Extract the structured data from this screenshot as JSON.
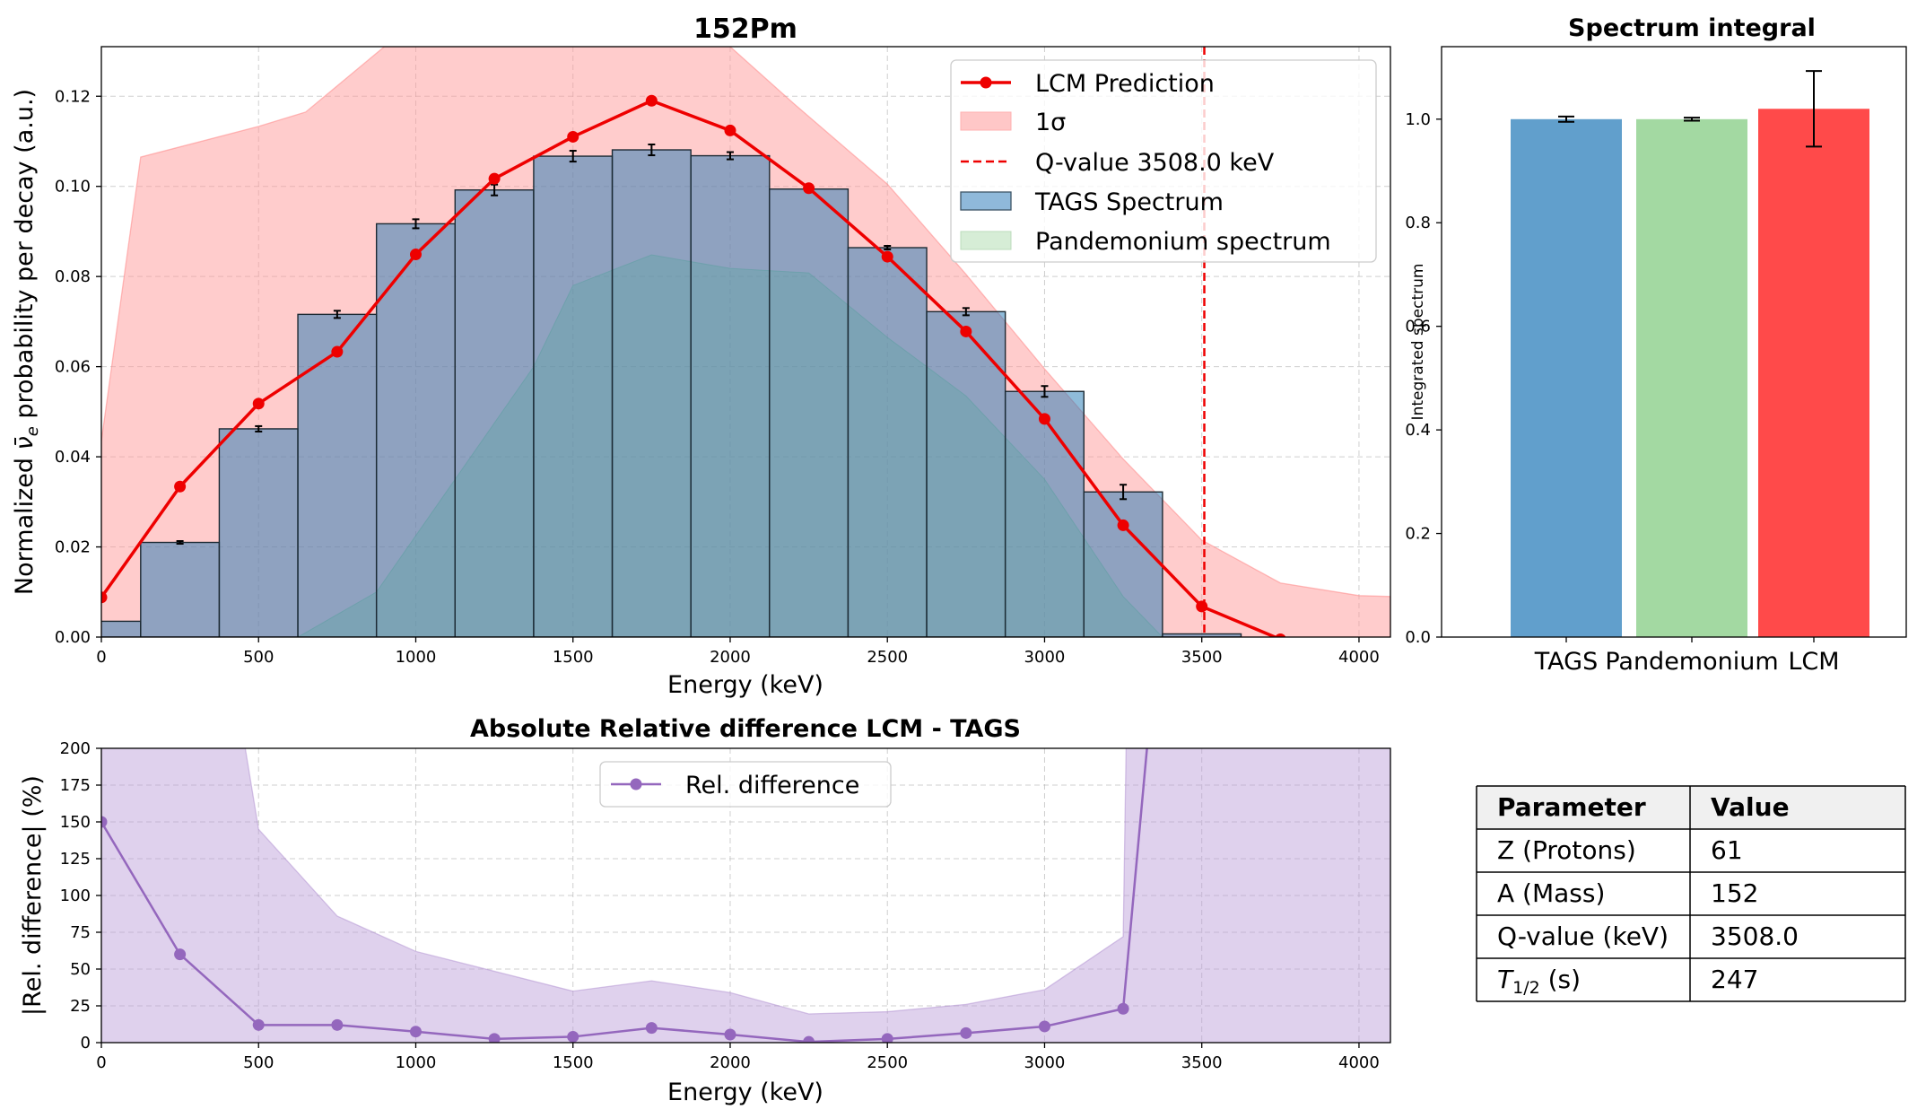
{
  "chart_data": [
    {
      "id": "main",
      "type": "bar+line",
      "title": "152Pm",
      "xlabel": "Energy (keV)",
      "ylabel_main": "Normalized ",
      "ylabel_sym": "ν̄",
      "ylabel_sub": "e",
      "ylabel_tail": " probability per decay (a.u.)",
      "xlim": [
        0,
        4100
      ],
      "ylim": [
        0,
        0.131
      ],
      "xticks": [
        0,
        500,
        1000,
        1500,
        2000,
        2500,
        3000,
        3500,
        4000
      ],
      "xtick_labels": [
        "0",
        "500",
        "1000",
        "1500",
        "2000",
        "2500",
        "3000",
        "3500",
        "4000"
      ],
      "yticks": [
        0,
        0.02,
        0.04,
        0.06,
        0.08,
        0.1,
        0.12
      ],
      "ytick_labels": [
        "0.00",
        "0.02",
        "0.04",
        "0.06",
        "0.08",
        "0.10",
        "0.12"
      ],
      "bin_width": 250,
      "bin_centers": [
        0,
        250,
        500,
        750,
        1000,
        1250,
        1500,
        1750,
        2000,
        2250,
        2500,
        2750,
        3000,
        3250,
        3500
      ],
      "tags_values": [
        0.0035,
        0.021,
        0.0462,
        0.0716,
        0.0917,
        0.0992,
        0.1067,
        0.1081,
        0.1068,
        0.0994,
        0.0864,
        0.0722,
        0.0545,
        0.0322,
        0.0007
      ],
      "tags_errors": [
        0.0,
        0.0003,
        0.0006,
        0.0008,
        0.001,
        0.0012,
        0.0012,
        0.0012,
        0.0008,
        0.0006,
        0.0004,
        0.0008,
        0.0012,
        0.0016,
        0.0
      ],
      "pandemonium_x": [
        0,
        125,
        375,
        625,
        875,
        1125,
        1375,
        1500,
        1750,
        2000,
        2250,
        2500,
        2750,
        3000,
        3250,
        3375
      ],
      "pandemonium_values": [
        0,
        0,
        0,
        0,
        0.01,
        0.035,
        0.06,
        0.078,
        0.0848,
        0.0818,
        0.0808,
        0.0665,
        0.0535,
        0.035,
        0.009,
        0
      ],
      "lcm_x": [
        0,
        250,
        500,
        750,
        1000,
        1250,
        1500,
        1750,
        2000,
        2250,
        2500,
        2750,
        3000,
        3250,
        3500,
        3750
      ],
      "lcm_values": [
        0.0088,
        0.0334,
        0.0518,
        0.0633,
        0.0849,
        0.1017,
        0.111,
        0.119,
        0.1124,
        0.0996,
        0.0844,
        0.0678,
        0.0484,
        0.0248,
        0.0068,
        -0.0005
      ],
      "sigma_x": [
        0,
        125,
        500,
        650,
        900,
        1000,
        2000,
        2200,
        2500,
        2750,
        3000,
        3250,
        3500,
        3750,
        4000,
        4100
      ],
      "sigma_upper": [
        0.0435,
        0.1065,
        0.1133,
        0.1165,
        0.131,
        0.131,
        0.131,
        0.1185,
        0.1005,
        0.0805,
        0.0595,
        0.0395,
        0.0215,
        0.012,
        0.0092,
        0.009
      ],
      "sigma_lower": [
        0,
        0,
        0,
        0,
        0,
        0,
        0,
        0,
        0,
        0,
        0,
        0,
        0,
        0,
        0,
        0
      ],
      "qvalue": 3508.0,
      "legend": {
        "lcm": "LCM Prediction",
        "sigma": "1σ",
        "qvalue": "Q-value 3508.0 keV",
        "tags": "TAGS Spectrum",
        "pandemonium": "Pandemonium spectrum"
      },
      "legend_position": "top-right"
    },
    {
      "id": "integral",
      "type": "bar",
      "title": "Spectrum integral",
      "ylabel": "Integrated spectrum",
      "categories": [
        "TAGS",
        "Pandemonium",
        "LCM"
      ],
      "values": [
        1.0,
        1.0,
        1.02
      ],
      "errors": [
        0.005,
        0.003,
        0.073
      ],
      "colors": [
        "#619FCC",
        "#A3D9A2",
        "#FF4A4A"
      ],
      "ylim": [
        0,
        1.14
      ],
      "yticks": [
        0,
        0.2,
        0.4,
        0.6,
        0.8,
        1.0
      ],
      "ytick_labels": [
        "0.0",
        "0.2",
        "0.4",
        "0.6",
        "0.8",
        "1.0"
      ]
    },
    {
      "id": "reldiff",
      "type": "line",
      "title": "Absolute Relative difference LCM - TAGS",
      "xlabel": "Energy (keV)",
      "ylabel": "|Rel. difference| (%)",
      "xlim": [
        0,
        4100
      ],
      "ylim": [
        0,
        200
      ],
      "xticks": [
        0,
        500,
        1000,
        1500,
        2000,
        2500,
        3000,
        3500,
        4000
      ],
      "xtick_labels": [
        "0",
        "500",
        "1000",
        "1500",
        "2000",
        "2500",
        "3000",
        "3500",
        "4000"
      ],
      "yticks": [
        0,
        25,
        50,
        75,
        100,
        125,
        150,
        175,
        200
      ],
      "ytick_labels": [
        "0",
        "25",
        "50",
        "75",
        "100",
        "125",
        "150",
        "175",
        "200"
      ],
      "x": [
        0,
        250,
        500,
        750,
        1000,
        1250,
        1500,
        1750,
        2000,
        2250,
        2500,
        2750,
        3000,
        3250,
        3330
      ],
      "values": [
        150,
        60,
        12,
        12,
        7.5,
        2.5,
        4,
        10,
        5.5,
        0.5,
        2.5,
        6.5,
        11,
        23,
        210
      ],
      "band_x": [
        0,
        450,
        500,
        750,
        1000,
        1500,
        1750,
        2000,
        2250,
        2500,
        2750,
        3000,
        3250,
        3260,
        3330,
        4100
      ],
      "band_upper": [
        210,
        210,
        145,
        86,
        62,
        35,
        42,
        34,
        19.5,
        21,
        26,
        36,
        72,
        210,
        210,
        210
      ],
      "legend": "Rel. difference",
      "legend_position": "upper-center"
    }
  ],
  "param_table": {
    "header": [
      "Parameter",
      "Value"
    ],
    "rows": [
      [
        "Z (Protons)",
        "61"
      ],
      [
        "A (Mass)",
        "152"
      ],
      [
        "Q-value (keV)",
        "3508.0"
      ]
    ],
    "half_life_label_sym": "T",
    "half_life_label_sub": "1/2",
    "half_life_label_tail": " (s)",
    "half_life_value": "247"
  }
}
